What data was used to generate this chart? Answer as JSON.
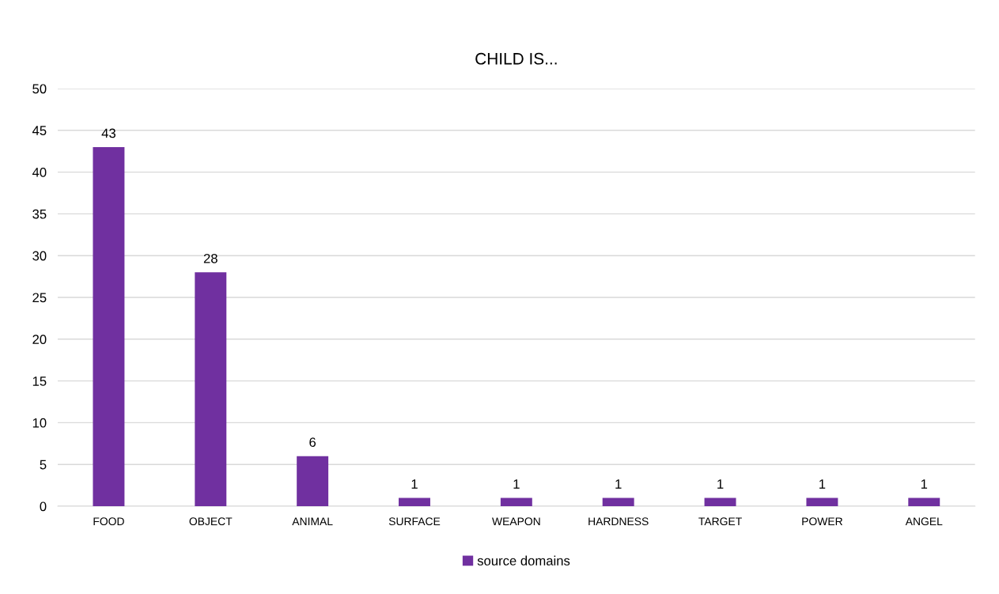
{
  "chart_data": {
    "type": "bar",
    "title": "CHILD IS...",
    "categories": [
      "FOOD",
      "OBJECT",
      "ANIMAL",
      "SURFACE",
      "WEAPON",
      "HARDNESS",
      "TARGET",
      "POWER",
      "ANGEL"
    ],
    "series": [
      {
        "name": "source domains",
        "color": "#7030a0",
        "values": [
          43,
          28,
          6,
          1,
          1,
          1,
          1,
          1,
          1
        ]
      }
    ],
    "ylim": [
      0,
      50
    ],
    "yticks": [
      0,
      5,
      10,
      15,
      20,
      25,
      30,
      35,
      40,
      45,
      50
    ],
    "grid": "y",
    "legend": "bottom",
    "data_labels": true
  }
}
